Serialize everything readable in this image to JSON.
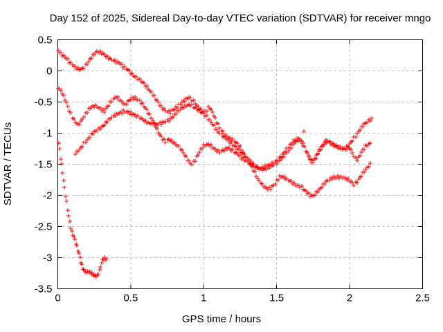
{
  "chart_data": {
    "type": "scatter",
    "title": "Day 152 of 2025, Sidereal Day-to-day VTEC variation (SDTVAR) for receiver mngo",
    "xlabel": "GPS time / hours",
    "ylabel": "SDTVAR / TECUs",
    "xlim": [
      0,
      2.5
    ],
    "ylim": [
      -3.5,
      0.5
    ],
    "xticks": [
      0,
      0.5,
      1,
      1.5,
      2,
      2.5
    ],
    "xtick_labels": [
      "0",
      "0.5",
      "1",
      "1.5",
      "2",
      "2.5"
    ],
    "yticks": [
      0.5,
      0,
      -0.5,
      -1,
      -1.5,
      -2,
      -2.5,
      -3,
      -3.5
    ],
    "ytick_labels": [
      "0.5",
      "0",
      "-0.5",
      "-1",
      "-1.5",
      "-2",
      "-2.5",
      "-3",
      "-3.5"
    ],
    "grid": true,
    "legend_position": "none",
    "marker": {
      "shape": "plus",
      "color": "#ff0000",
      "size": 7
    },
    "colors": {
      "background": "#ffffff",
      "axis": "#000000",
      "grid": "#b4b4b4",
      "series": "#ff0000"
    },
    "resample_step_hours": 0.01,
    "series": [
      {
        "name": "trace-1",
        "dt": 0.01,
        "points": [
          [
            0.0,
            0.33
          ],
          [
            0.02,
            0.29
          ],
          [
            0.04,
            0.25
          ],
          [
            0.06,
            0.21
          ],
          [
            0.08,
            0.15
          ],
          [
            0.1,
            0.09
          ],
          [
            0.12,
            0.05
          ],
          [
            0.145,
            0.02
          ],
          [
            0.17,
            0.04
          ],
          [
            0.19,
            0.1
          ],
          [
            0.21,
            0.16
          ],
          [
            0.23,
            0.22
          ],
          [
            0.25,
            0.27
          ],
          [
            0.27,
            0.3
          ],
          [
            0.3,
            0.28
          ],
          [
            0.33,
            0.25
          ],
          [
            0.36,
            0.21
          ],
          [
            0.39,
            0.16
          ],
          [
            0.42,
            0.12
          ],
          [
            0.45,
            0.06
          ],
          [
            0.48,
            0.02
          ],
          [
            0.5,
            -0.02
          ],
          [
            0.53,
            -0.08
          ],
          [
            0.56,
            -0.15
          ],
          [
            0.59,
            -0.22
          ],
          [
            0.62,
            -0.29
          ],
          [
            0.65,
            -0.37
          ],
          [
            0.68,
            -0.47
          ],
          [
            0.7,
            -0.54
          ],
          [
            0.72,
            -0.61
          ],
          [
            0.745,
            -0.66
          ],
          [
            0.77,
            -0.67
          ],
          [
            0.79,
            -0.62
          ],
          [
            0.82,
            -0.56
          ],
          [
            0.85,
            -0.5
          ],
          [
            0.88,
            -0.46
          ],
          [
            0.905,
            -0.44
          ],
          [
            0.93,
            -0.5
          ],
          [
            0.96,
            -0.57
          ],
          [
            0.99,
            -0.63
          ],
          [
            1.015,
            -0.66
          ],
          [
            1.035,
            -0.57
          ],
          [
            1.06,
            -0.68
          ],
          [
            1.085,
            -0.8
          ],
          [
            1.11,
            -0.91
          ],
          [
            1.135,
            -0.99
          ],
          [
            1.16,
            -1.05
          ],
          [
            1.19,
            -1.1
          ],
          [
            1.22,
            -1.16
          ],
          [
            1.25,
            -1.23
          ],
          [
            1.28,
            -1.33
          ],
          [
            1.31,
            -1.45
          ],
          [
            1.34,
            -1.59
          ],
          [
            1.37,
            -1.74
          ],
          [
            1.4,
            -1.84
          ],
          [
            1.43,
            -1.88
          ],
          [
            1.46,
            -1.88
          ],
          [
            1.49,
            -1.8
          ],
          [
            1.52,
            -1.71
          ],
          [
            1.55,
            -1.72
          ],
          [
            1.58,
            -1.75
          ],
          [
            1.61,
            -1.79
          ],
          [
            1.64,
            -1.83
          ],
          [
            1.67,
            -1.88
          ],
          [
            1.7,
            -1.95
          ],
          [
            1.73,
            -2.0
          ],
          [
            1.75,
            -2.0
          ],
          [
            1.77,
            -1.95
          ],
          [
            1.8,
            -1.88
          ],
          [
            1.83,
            -1.81
          ],
          [
            1.86,
            -1.76
          ],
          [
            1.89,
            -1.71
          ],
          [
            1.92,
            -1.69
          ],
          [
            1.95,
            -1.7
          ],
          [
            1.98,
            -1.74
          ],
          [
            2.01,
            -1.79
          ],
          [
            2.03,
            -1.83
          ],
          [
            2.05,
            -1.78
          ],
          [
            2.07,
            -1.7
          ],
          [
            2.09,
            -1.63
          ],
          [
            2.11,
            -1.58
          ],
          [
            2.13,
            -1.53
          ],
          [
            2.145,
            -1.5
          ]
        ]
      },
      {
        "name": "trace-2",
        "dt": 0.01,
        "points": [
          [
            0.0,
            -0.27
          ],
          [
            0.02,
            -0.33
          ],
          [
            0.04,
            -0.42
          ],
          [
            0.06,
            -0.52
          ],
          [
            0.08,
            -0.63
          ],
          [
            0.1,
            -0.73
          ],
          [
            0.12,
            -0.81
          ],
          [
            0.14,
            -0.86
          ],
          [
            0.16,
            -0.82
          ],
          [
            0.18,
            -0.74
          ],
          [
            0.2,
            -0.66
          ],
          [
            0.22,
            -0.6
          ],
          [
            0.24,
            -0.57
          ],
          [
            0.26,
            -0.55
          ],
          [
            0.28,
            -0.58
          ],
          [
            0.3,
            -0.62
          ],
          [
            0.32,
            -0.65
          ],
          [
            0.34,
            -0.59
          ],
          [
            0.36,
            -0.52
          ],
          [
            0.38,
            -0.46
          ],
          [
            0.4,
            -0.41
          ],
          [
            0.42,
            -0.44
          ],
          [
            0.44,
            -0.49
          ],
          [
            0.46,
            -0.54
          ],
          [
            0.48,
            -0.5
          ],
          [
            0.505,
            -0.46
          ],
          [
            0.53,
            -0.44
          ],
          [
            0.555,
            -0.47
          ],
          [
            0.58,
            -0.52
          ],
          [
            0.6,
            -0.58
          ],
          [
            0.62,
            -0.66
          ],
          [
            0.64,
            -0.76
          ],
          [
            0.66,
            -0.86
          ],
          [
            0.68,
            -0.95
          ],
          [
            0.7,
            -1.03
          ],
          [
            0.72,
            -1.08
          ],
          [
            0.74,
            -1.12
          ],
          [
            0.76,
            -1.09
          ],
          [
            0.78,
            -1.13
          ],
          [
            0.8,
            -1.17
          ],
          [
            0.83,
            -1.23
          ],
          [
            0.86,
            -1.31
          ],
          [
            0.885,
            -1.4
          ],
          [
            0.905,
            -1.46
          ],
          [
            0.92,
            -1.49
          ],
          [
            0.94,
            -1.43
          ],
          [
            0.96,
            -1.35
          ],
          [
            0.98,
            -1.27
          ],
          [
            1.0,
            -1.21
          ],
          [
            1.025,
            -1.17
          ],
          [
            1.05,
            -1.19
          ],
          [
            1.08,
            -1.26
          ],
          [
            1.11,
            -1.31
          ],
          [
            1.14,
            -1.28
          ],
          [
            1.17,
            -1.24
          ],
          [
            1.2,
            -1.27
          ],
          [
            1.23,
            -1.33
          ],
          [
            1.26,
            -1.4
          ],
          [
            1.29,
            -1.46
          ],
          [
            1.32,
            -1.5
          ],
          [
            1.35,
            -1.53
          ],
          [
            1.38,
            -1.55
          ],
          [
            1.41,
            -1.55
          ],
          [
            1.44,
            -1.53
          ],
          [
            1.47,
            -1.5
          ],
          [
            1.5,
            -1.44
          ],
          [
            1.53,
            -1.37
          ],
          [
            1.56,
            -1.28
          ],
          [
            1.59,
            -1.2
          ],
          [
            1.62,
            -1.13
          ],
          [
            1.65,
            -1.08
          ],
          [
            1.67,
            -1.13
          ],
          [
            1.695,
            -1.25
          ],
          [
            1.72,
            -1.37
          ],
          [
            1.74,
            -1.45
          ],
          [
            1.76,
            -1.42
          ],
          [
            1.78,
            -1.33
          ],
          [
            1.8,
            -1.25
          ],
          [
            1.82,
            -1.18
          ],
          [
            1.84,
            -1.11
          ],
          [
            1.86,
            -1.14
          ],
          [
            1.89,
            -1.19
          ],
          [
            1.92,
            -1.23
          ],
          [
            1.95,
            -1.25
          ],
          [
            1.98,
            -1.25
          ],
          [
            2.0,
            -1.22
          ],
          [
            2.02,
            -1.3
          ],
          [
            2.035,
            -1.4
          ],
          [
            2.05,
            -1.43
          ],
          [
            2.065,
            -1.39
          ],
          [
            2.08,
            -1.32
          ],
          [
            2.095,
            -1.26
          ],
          [
            2.11,
            -1.22
          ],
          [
            2.125,
            -1.18
          ],
          [
            2.14,
            -1.16
          ]
        ]
      },
      {
        "name": "trace-3",
        "dt": 0.01,
        "points": [
          [
            0.12,
            -1.32
          ],
          [
            0.15,
            -1.25
          ],
          [
            0.18,
            -1.17
          ],
          [
            0.21,
            -1.09
          ],
          [
            0.245,
            -1.0
          ],
          [
            0.28,
            -0.93
          ],
          [
            0.315,
            -0.86
          ],
          [
            0.35,
            -0.79
          ],
          [
            0.385,
            -0.73
          ],
          [
            0.42,
            -0.68
          ],
          [
            0.455,
            -0.63
          ],
          [
            0.49,
            -0.67
          ],
          [
            0.52,
            -0.71
          ],
          [
            0.55,
            -0.75
          ],
          [
            0.58,
            -0.78
          ],
          [
            0.61,
            -0.81
          ],
          [
            0.645,
            -0.84
          ],
          [
            0.68,
            -0.87
          ],
          [
            0.71,
            -0.85
          ],
          [
            0.74,
            -0.81
          ],
          [
            0.77,
            -0.76
          ],
          [
            0.8,
            -0.7
          ],
          [
            0.83,
            -0.64
          ],
          [
            0.86,
            -0.59
          ],
          [
            0.89,
            -0.55
          ],
          [
            0.915,
            -0.54
          ],
          [
            0.94,
            -0.58
          ],
          [
            0.97,
            -0.64
          ],
          [
            1.0,
            -0.7
          ],
          [
            1.03,
            -0.77
          ],
          [
            1.06,
            -0.85
          ],
          [
            1.09,
            -0.94
          ],
          [
            1.12,
            -1.02
          ],
          [
            1.15,
            -1.09
          ],
          [
            1.18,
            -1.15
          ],
          [
            1.21,
            -1.2
          ],
          [
            1.24,
            -1.26
          ],
          [
            1.27,
            -1.34
          ],
          [
            1.3,
            -1.42
          ],
          [
            1.33,
            -1.49
          ],
          [
            1.36,
            -1.54
          ],
          [
            1.39,
            -1.57
          ],
          [
            1.42,
            -1.57
          ],
          [
            1.45,
            -1.55
          ],
          [
            1.48,
            -1.52
          ],
          [
            1.51,
            -1.46
          ],
          [
            1.54,
            -1.38
          ],
          [
            1.57,
            -1.3
          ],
          [
            1.6,
            -1.22
          ],
          [
            1.63,
            -1.15
          ],
          [
            1.655,
            -1.11
          ],
          [
            1.68,
            -1.17
          ],
          [
            1.7,
            -1.27
          ],
          [
            1.72,
            -1.36
          ],
          [
            1.74,
            -1.47
          ],
          [
            1.76,
            -1.44
          ],
          [
            1.78,
            -1.35
          ],
          [
            1.805,
            -1.25
          ],
          [
            1.83,
            -1.16
          ],
          [
            1.85,
            -1.12
          ],
          [
            1.87,
            -1.15
          ],
          [
            1.9,
            -1.2
          ],
          [
            1.93,
            -1.24
          ],
          [
            1.96,
            -1.27
          ],
          [
            1.985,
            -1.22
          ],
          [
            2.01,
            -1.14
          ],
          [
            2.03,
            -1.07
          ],
          [
            2.05,
            -1.0
          ],
          [
            2.07,
            -0.94
          ],
          [
            2.09,
            -0.89
          ],
          [
            2.11,
            -0.85
          ],
          [
            2.13,
            -0.81
          ],
          [
            2.15,
            -0.77
          ]
        ]
      },
      {
        "name": "trace-4-short",
        "dt": 0.007,
        "points": [
          [
            0.005,
            -1.16
          ],
          [
            0.012,
            -1.28
          ],
          [
            0.018,
            -1.39
          ],
          [
            0.025,
            -1.5
          ],
          [
            0.032,
            -1.62
          ],
          [
            0.038,
            -1.73
          ],
          [
            0.045,
            -1.85
          ],
          [
            0.052,
            -1.97
          ],
          [
            0.06,
            -2.08
          ],
          [
            0.067,
            -2.2
          ],
          [
            0.075,
            -2.32
          ],
          [
            0.082,
            -2.42
          ],
          [
            0.09,
            -2.52
          ],
          [
            0.097,
            -2.6
          ],
          [
            0.104,
            -2.64
          ],
          [
            0.11,
            -2.67
          ],
          [
            0.117,
            -2.72
          ],
          [
            0.124,
            -2.78
          ],
          [
            0.131,
            -2.84
          ],
          [
            0.14,
            -2.9
          ],
          [
            0.148,
            -2.97
          ],
          [
            0.156,
            -3.04
          ],
          [
            0.164,
            -3.1
          ],
          [
            0.172,
            -3.15
          ],
          [
            0.18,
            -3.19
          ],
          [
            0.19,
            -3.22
          ],
          [
            0.2,
            -3.23
          ],
          [
            0.21,
            -3.22
          ],
          [
            0.22,
            -3.24
          ],
          [
            0.23,
            -3.26
          ],
          [
            0.24,
            -3.28
          ],
          [
            0.25,
            -3.3
          ],
          [
            0.258,
            -3.28
          ],
          [
            0.266,
            -3.3
          ],
          [
            0.274,
            -3.28
          ],
          [
            0.282,
            -3.22
          ],
          [
            0.29,
            -3.15
          ],
          [
            0.298,
            -3.08
          ],
          [
            0.306,
            -3.03
          ],
          [
            0.314,
            -3.0
          ],
          [
            0.322,
            -3.02
          ],
          [
            0.33,
            -3.04
          ],
          [
            0.337,
            -3.02
          ]
        ]
      },
      {
        "name": "outlier-point",
        "dt": 0,
        "points": [
          [
            1.685,
            -0.97
          ]
        ]
      }
    ]
  }
}
